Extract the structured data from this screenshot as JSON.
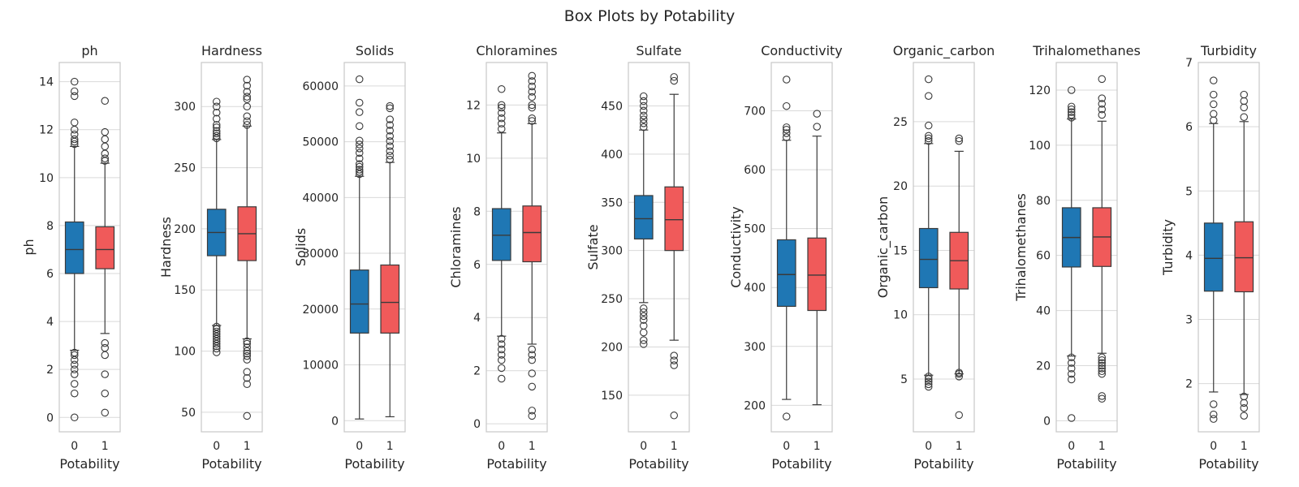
{
  "figure_title": "Box Plots by Potability",
  "colors": {
    "group_0": "#1f77b4",
    "group_1": "#f05a5a",
    "grid": "#d9d9d9",
    "frame": "#c8c8c8",
    "whisker": "#3a3a3a"
  },
  "chart_data": [
    {
      "type": "box",
      "title": "ph",
      "xlabel": "Potability",
      "ylabel": "ph",
      "categories": [
        "0",
        "1"
      ],
      "ylim": [
        -0.6,
        14.8
      ],
      "yticks": [
        0,
        2,
        4,
        6,
        8,
        10,
        12,
        14
      ],
      "grid": true,
      "boxes": [
        {
          "q1": 6.0,
          "median": 7.0,
          "q3": 8.15,
          "whislo": 2.8,
          "whishi": 11.3,
          "outliers": [
            0.0,
            1.0,
            1.4,
            1.8,
            2.0,
            2.2,
            2.4,
            2.6,
            2.7,
            11.4,
            11.5,
            11.6,
            11.8,
            12.0,
            12.3,
            13.4,
            13.6,
            14.0
          ]
        },
        {
          "q1": 6.2,
          "median": 7.0,
          "q3": 7.95,
          "whislo": 3.5,
          "whishi": 10.6,
          "outliers": [
            0.2,
            1.0,
            1.8,
            2.6,
            2.9,
            3.1,
            10.7,
            10.8,
            11.0,
            11.3,
            11.6,
            11.9,
            13.2
          ]
        }
      ]
    },
    {
      "type": "box",
      "title": "Hardness",
      "xlabel": "Potability",
      "ylabel": "Hardness",
      "categories": [
        "0",
        "1"
      ],
      "ylim": [
        34,
        336
      ],
      "yticks": [
        50,
        100,
        150,
        200,
        250,
        300
      ],
      "grid": true,
      "boxes": [
        {
          "q1": 178,
          "median": 197,
          "q3": 216,
          "whislo": 121,
          "whishi": 273,
          "outliers": [
            99,
            102,
            104,
            106,
            108,
            110,
            112,
            114,
            116,
            118,
            120,
            274,
            276,
            278,
            280,
            283,
            285,
            290,
            295,
            300,
            304
          ]
        },
        {
          "q1": 174,
          "median": 196,
          "q3": 218,
          "whislo": 110,
          "whishi": 284,
          "outliers": [
            47,
            73,
            78,
            83,
            93,
            96,
            98,
            100,
            103,
            106,
            108,
            285,
            288,
            292,
            300,
            306,
            308,
            312,
            317,
            322
          ]
        }
      ]
    },
    {
      "type": "box",
      "title": "Solids",
      "xlabel": "Potability",
      "ylabel": "Solids",
      "categories": [
        "0",
        "1"
      ],
      "ylim": [
        -2000,
        64200
      ],
      "yticks": [
        0,
        10000,
        20000,
        30000,
        40000,
        50000,
        60000
      ],
      "grid": true,
      "boxes": [
        {
          "q1": 15700,
          "median": 20900,
          "q3": 27000,
          "whislo": 300,
          "whishi": 43800,
          "outliers": [
            44200,
            44600,
            45000,
            45500,
            46000,
            47000,
            48000,
            48800,
            49500,
            50200,
            52800,
            55300,
            57000,
            61200
          ]
        },
        {
          "q1": 15700,
          "median": 21200,
          "q3": 27900,
          "whislo": 700,
          "whishi": 46300,
          "outliers": [
            46800,
            47500,
            48300,
            49200,
            50100,
            51000,
            52000,
            53000,
            54000,
            56000,
            56400
          ]
        }
      ]
    },
    {
      "type": "box",
      "title": "Chloramines",
      "xlabel": "Potability",
      "ylabel": "Chloramines",
      "categories": [
        "0",
        "1"
      ],
      "ylim": [
        -0.3,
        13.6
      ],
      "yticks": [
        0,
        2,
        4,
        6,
        8,
        10,
        12
      ],
      "grid": true,
      "boxes": [
        {
          "q1": 6.15,
          "median": 7.1,
          "q3": 8.1,
          "whislo": 3.3,
          "whishi": 10.95,
          "outliers": [
            1.7,
            2.1,
            2.4,
            2.6,
            2.8,
            3.0,
            3.2,
            11.1,
            11.3,
            11.5,
            11.7,
            11.9,
            12.0,
            12.6
          ]
        },
        {
          "q1": 6.1,
          "median": 7.2,
          "q3": 8.2,
          "whislo": 3.0,
          "whishi": 11.3,
          "outliers": [
            0.3,
            0.5,
            1.4,
            1.9,
            2.4,
            2.6,
            2.8,
            11.4,
            11.5,
            11.9,
            12.0,
            12.3,
            12.5,
            12.7,
            12.9,
            13.1
          ]
        }
      ]
    },
    {
      "type": "box",
      "title": "Sulfate",
      "xlabel": "Potability",
      "ylabel": "Sulfate",
      "categories": [
        "0",
        "1"
      ],
      "ylim": [
        112,
        495
      ],
      "yticks": [
        150,
        200,
        250,
        300,
        350,
        400,
        450
      ],
      "grid": true,
      "boxes": [
        {
          "q1": 312,
          "median": 333,
          "q3": 357,
          "whislo": 246,
          "whishi": 425,
          "outliers": [
            203,
            207,
            215,
            222,
            228,
            232,
            236,
            240,
            428,
            432,
            436,
            440,
            445,
            450,
            455,
            460
          ]
        },
        {
          "q1": 300,
          "median": 332,
          "q3": 366,
          "whislo": 207,
          "whishi": 462,
          "outliers": [
            129,
            181,
            186,
            191,
            476,
            480
          ]
        }
      ]
    },
    {
      "type": "box",
      "title": "Conductivity",
      "xlabel": "Potability",
      "ylabel": "Conductivity",
      "categories": [
        "0",
        "1"
      ],
      "ylim": [
        155,
        782
      ],
      "yticks": [
        200,
        300,
        400,
        500,
        600,
        700
      ],
      "grid": true,
      "boxes": [
        {
          "q1": 368,
          "median": 422,
          "q3": 481,
          "whislo": 210,
          "whishi": 650,
          "outliers": [
            181,
            655,
            662,
            668,
            672,
            708,
            753
          ]
        },
        {
          "q1": 361,
          "median": 421,
          "q3": 484,
          "whislo": 201,
          "whishi": 657,
          "outliers": [
            673,
            695
          ]
        }
      ]
    },
    {
      "type": "box",
      "title": "Organic_carbon",
      "xlabel": "Potability",
      "ylabel": "Organic_carbon",
      "categories": [
        "0",
        "1"
      ],
      "ylim": [
        0.9,
        29.6
      ],
      "yticks": [
        5,
        10,
        15,
        20,
        25
      ],
      "grid": true,
      "boxes": [
        {
          "q1": 12.1,
          "median": 14.3,
          "q3": 16.7,
          "whislo": 5.3,
          "whishi": 23.3,
          "outliers": [
            4.4,
            4.6,
            4.8,
            5.0,
            5.2,
            23.5,
            23.7,
            23.9,
            24.7,
            27.0,
            28.3
          ]
        },
        {
          "q1": 12.0,
          "median": 14.2,
          "q3": 16.4,
          "whislo": 5.4,
          "whishi": 22.7,
          "outliers": [
            2.2,
            5.2,
            5.4,
            5.5,
            23.5,
            23.7
          ]
        }
      ]
    },
    {
      "type": "box",
      "title": "Trihalomethanes",
      "xlabel": "Potability",
      "ylabel": "Trihalomethanes",
      "categories": [
        "0",
        "1"
      ],
      "ylim": [
        -4,
        130
      ],
      "yticks": [
        0,
        20,
        40,
        60,
        80,
        100,
        120
      ],
      "grid": true,
      "boxes": [
        {
          "q1": 55.8,
          "median": 66.5,
          "q3": 77.3,
          "whislo": 23.5,
          "whishi": 109.5,
          "outliers": [
            1,
            15,
            17,
            19,
            21,
            23,
            110,
            111,
            112,
            113,
            114,
            120
          ]
        },
        {
          "q1": 56.0,
          "median": 66.7,
          "q3": 77.3,
          "whislo": 24.5,
          "whishi": 108.7,
          "outliers": [
            8,
            9,
            17,
            18,
            19,
            20,
            21,
            22,
            23,
            111,
            113,
            115,
            117,
            124
          ]
        }
      ]
    },
    {
      "type": "box",
      "title": "Turbidity",
      "xlabel": "Potability",
      "ylabel": "Turbidity",
      "categories": [
        "0",
        "1"
      ],
      "ylim": [
        1.25,
        7.0
      ],
      "yticks": [
        2,
        3,
        4,
        5,
        6,
        7
      ],
      "grid": true,
      "boxes": [
        {
          "q1": 3.44,
          "median": 3.95,
          "q3": 4.5,
          "whislo": 1.87,
          "whishi": 6.05,
          "outliers": [
            1.45,
            1.52,
            1.68,
            6.1,
            6.2,
            6.35,
            6.5,
            6.72
          ]
        },
        {
          "q1": 3.43,
          "median": 3.96,
          "q3": 4.52,
          "whislo": 1.83,
          "whishi": 6.08,
          "outliers": [
            1.5,
            1.62,
            1.7,
            1.8,
            6.15,
            6.3,
            6.4,
            6.5
          ]
        }
      ]
    }
  ]
}
